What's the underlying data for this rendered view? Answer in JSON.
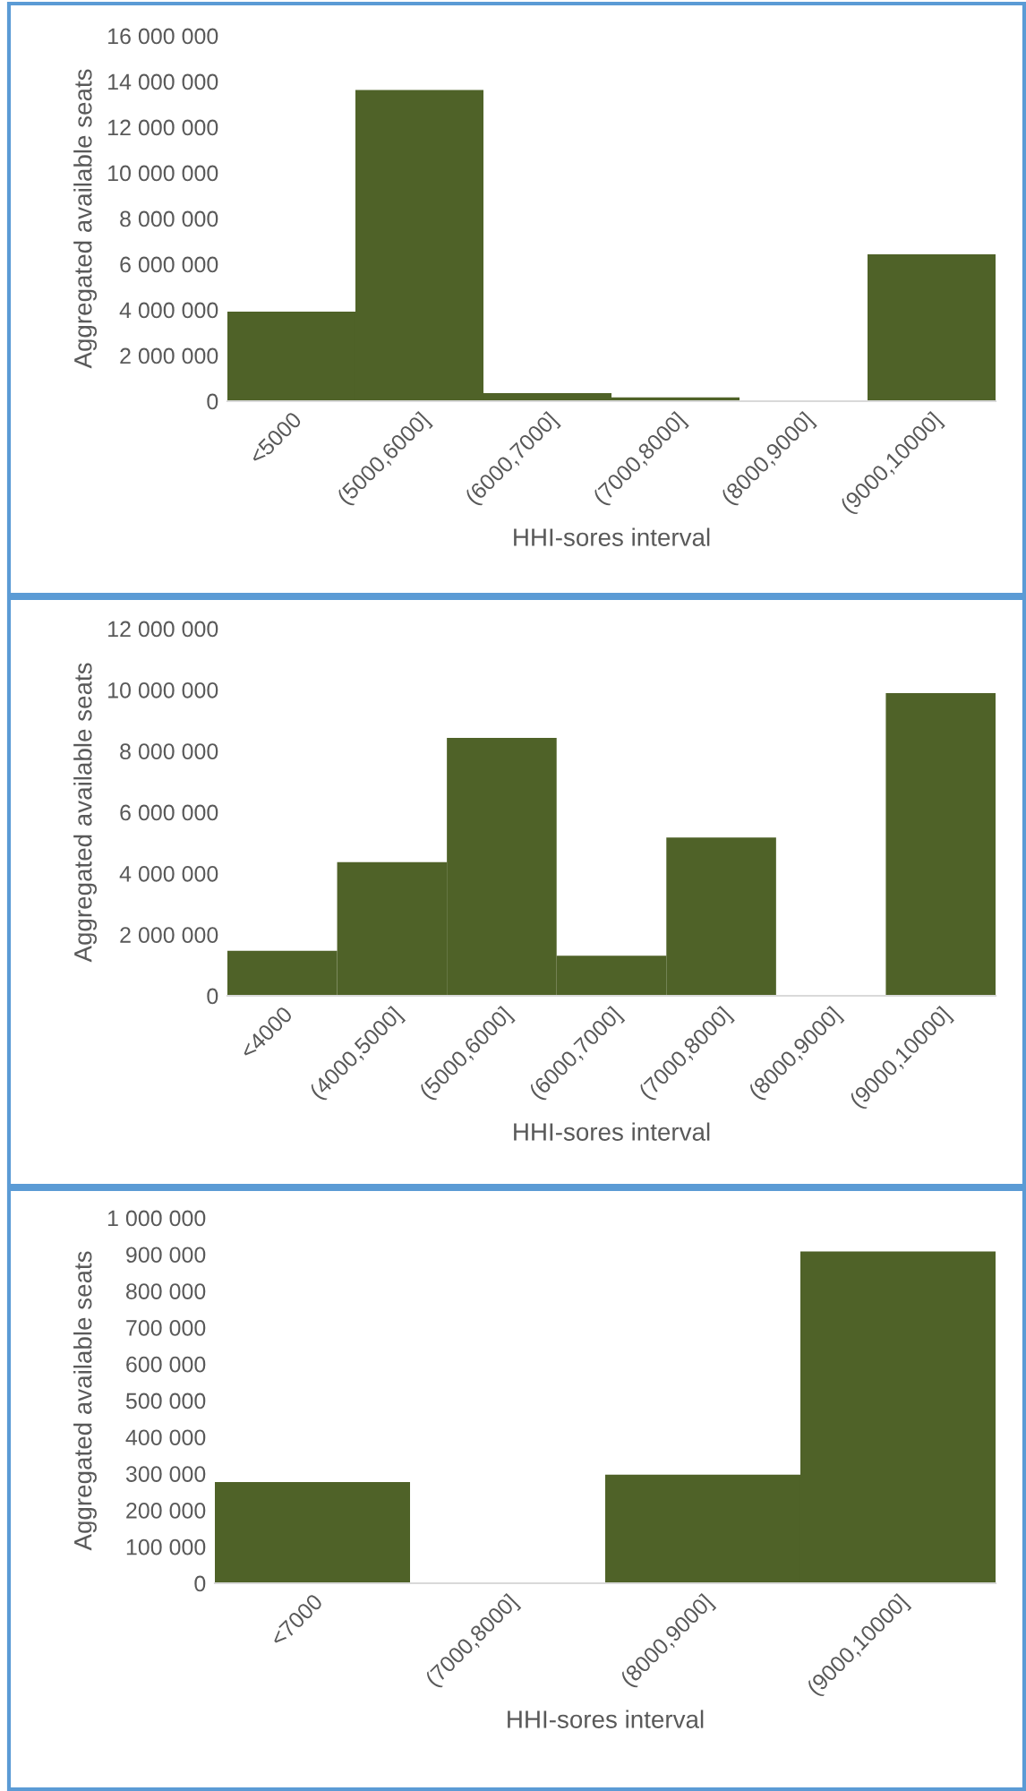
{
  "chart_data": [
    {
      "type": "bar",
      "xlabel": "HHI-sores interval",
      "ylabel": "Aggregated available seats",
      "categories": [
        "<5000",
        "(5000,6000]",
        "(6000,7000]",
        "(7000,8000]",
        "(8000,9000]",
        "(9000,10000]"
      ],
      "values": [
        3920000,
        13630000,
        350000,
        170000,
        0,
        6430000
      ],
      "color": "#4f6228",
      "ylim": [
        0,
        16000000
      ],
      "yticks": [
        {
          "value": 0,
          "label": "0"
        },
        {
          "value": 2000000,
          "label": "2 000 000"
        },
        {
          "value": 4000000,
          "label": "4 000 000"
        },
        {
          "value": 6000000,
          "label": "6 000 000"
        },
        {
          "value": 8000000,
          "label": "8 000 000"
        },
        {
          "value": 10000000,
          "label": "10 000 000"
        },
        {
          "value": 12000000,
          "label": "12 000 000"
        },
        {
          "value": 14000000,
          "label": "14 000 000"
        },
        {
          "value": 16000000,
          "label": "16 000 000"
        }
      ],
      "grid": false
    },
    {
      "type": "bar",
      "xlabel": "HHI-sores interval",
      "ylabel": "Aggregated available seats",
      "categories": [
        "<4000",
        "(4000,5000]",
        "(5000,6000]",
        "(6000,7000]",
        "(7000,8000]",
        "(8000,9000]",
        "(9000,10000]"
      ],
      "values": [
        1470000,
        4370000,
        8430000,
        1310000,
        5170000,
        0,
        9890000
      ],
      "color": "#4f6228",
      "ylim": [
        0,
        12000000
      ],
      "yticks": [
        {
          "value": 0,
          "label": "0"
        },
        {
          "value": 2000000,
          "label": "2 000 000"
        },
        {
          "value": 4000000,
          "label": "4 000 000"
        },
        {
          "value": 6000000,
          "label": "6 000 000"
        },
        {
          "value": 8000000,
          "label": "8 000 000"
        },
        {
          "value": 10000000,
          "label": "10 000 000"
        },
        {
          "value": 12000000,
          "label": "12 000 000"
        }
      ],
      "grid": false
    },
    {
      "type": "bar",
      "xlabel": "HHI-sores interval",
      "ylabel": "Aggregated available seats",
      "categories": [
        "<7000",
        "(7000,8000]",
        "(8000,9000]",
        "(9000,10000]"
      ],
      "values": [
        277000,
        0,
        297000,
        908000
      ],
      "color": "#4f6228",
      "ylim": [
        0,
        1000000
      ],
      "yticks": [
        {
          "value": 0,
          "label": "0"
        },
        {
          "value": 100000,
          "label": "100 000"
        },
        {
          "value": 200000,
          "label": "200 000"
        },
        {
          "value": 300000,
          "label": "300 000"
        },
        {
          "value": 400000,
          "label": "400 000"
        },
        {
          "value": 500000,
          "label": "500 000"
        },
        {
          "value": 600000,
          "label": "600 000"
        },
        {
          "value": 700000,
          "label": "700 000"
        },
        {
          "value": 800000,
          "label": "800 000"
        },
        {
          "value": 900000,
          "label": "900 000"
        },
        {
          "value": 1000000,
          "label": "1 000 000"
        }
      ],
      "grid": false
    }
  ]
}
